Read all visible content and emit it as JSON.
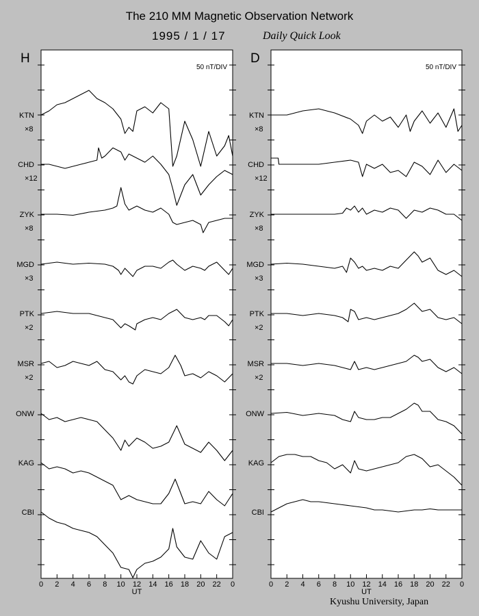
{
  "header": {
    "title": "The 210 MM Magnetic Observation Network",
    "date": "1995 /  1 / 17",
    "subtitle": "Daily Quick Look"
  },
  "footer": "Kyushu University, Japan",
  "chart_data": [
    {
      "type": "line",
      "panel": "H",
      "scale": "50 nT/DIV",
      "xlabel": "UT",
      "x_ticks": [
        "0",
        "2",
        "4",
        "6",
        "8",
        "10",
        "12",
        "14",
        "16",
        "18",
        "20",
        "22",
        "0"
      ],
      "xlim": [
        0,
        24
      ],
      "stations": [
        {
          "name": "KTN",
          "multiplier": "×8"
        },
        {
          "name": "CHD",
          "multiplier": "×12"
        },
        {
          "name": "ZYK",
          "multiplier": "×8"
        },
        {
          "name": "MGD",
          "multiplier": "×3"
        },
        {
          "name": "PTK",
          "multiplier": "×2"
        },
        {
          "name": "MSR",
          "multiplier": "×2"
        },
        {
          "name": "ONW",
          "multiplier": ""
        },
        {
          "name": "KAG",
          "multiplier": ""
        },
        {
          "name": "CBI",
          "multiplier": ""
        }
      ],
      "series": [
        {
          "name": "KTN",
          "x": [
            0,
            1,
            2,
            3,
            4,
            5,
            5.5,
            6,
            7,
            8,
            9,
            10,
            10.5,
            11,
            11.5,
            12,
            13,
            14,
            15,
            16,
            16.5,
            17,
            18,
            19,
            20,
            21,
            22,
            23,
            23.5,
            24
          ],
          "y": [
            0,
            0.2,
            0.5,
            0.6,
            0.8,
            1.0,
            1.1,
            1.2,
            0.8,
            0.6,
            0.3,
            -0.2,
            -0.9,
            -0.6,
            -0.8,
            0.2,
            0.4,
            0.1,
            0.6,
            0.3,
            -2.5,
            -2.0,
            -0.3,
            -1.2,
            -2.5,
            -0.8,
            -2.0,
            -1.5,
            -1.0,
            -2.0
          ]
        },
        {
          "name": "CHD",
          "x": [
            0,
            1,
            2,
            3,
            4,
            5,
            6,
            7,
            7.2,
            7.6,
            8,
            9,
            10,
            10.5,
            11,
            12,
            13,
            14,
            15,
            16,
            16.5,
            17,
            18,
            19,
            20,
            21,
            22,
            23,
            24
          ],
          "y": [
            0,
            0,
            -0.1,
            -0.2,
            -0.1,
            0,
            0.1,
            0.2,
            0.8,
            0.3,
            0.4,
            0.8,
            0.6,
            0.2,
            0.5,
            0.3,
            0.1,
            0.4,
            0,
            -0.5,
            -1.2,
            -2.0,
            -1.0,
            -0.5,
            -1.5,
            -1.0,
            -0.6,
            -0.3,
            -0.5
          ]
        },
        {
          "name": "ZYK",
          "x": [
            0,
            2,
            4,
            6,
            8,
            9,
            9.5,
            10,
            10.5,
            11,
            12,
            13,
            14,
            15,
            16,
            16.5,
            17,
            18,
            19,
            20,
            20.3,
            21,
            22,
            23,
            24
          ],
          "y": [
            0,
            0,
            -0.05,
            0.1,
            0.2,
            0.3,
            0.4,
            1.3,
            0.5,
            0.2,
            0.4,
            0.2,
            0.1,
            0.3,
            0,
            -0.4,
            -0.5,
            -0.4,
            -0.3,
            -0.5,
            -0.9,
            -0.4,
            -0.3,
            -0.2,
            -0.2
          ]
        },
        {
          "name": "MGD",
          "x": [
            0,
            2,
            4,
            6,
            8,
            9,
            9.7,
            10,
            10.5,
            11,
            11.5,
            12,
            13,
            14,
            15,
            16,
            16.5,
            17,
            18,
            19,
            20,
            20.5,
            21,
            22,
            23,
            23.5,
            24
          ],
          "y": [
            0,
            0.1,
            0,
            0.05,
            0,
            -0.1,
            -0.3,
            -0.5,
            -0.2,
            -0.4,
            -0.6,
            -0.3,
            -0.1,
            -0.1,
            -0.2,
            0.1,
            0.2,
            0,
            -0.3,
            -0.1,
            -0.2,
            -0.3,
            -0.1,
            0.1,
            -0.3,
            -0.5,
            -0.2
          ]
        },
        {
          "name": "PTK",
          "x": [
            0,
            2,
            4,
            6,
            7,
            8,
            9,
            10,
            10.5,
            11,
            11.8,
            12,
            13,
            14,
            15,
            16,
            17,
            18,
            19,
            20,
            20.5,
            21,
            22,
            23,
            23.5,
            24
          ],
          "y": [
            0,
            0.1,
            0,
            0,
            -0.1,
            -0.2,
            -0.3,
            -0.7,
            -0.5,
            -0.6,
            -0.8,
            -0.5,
            -0.3,
            -0.2,
            -0.3,
            0,
            0.2,
            -0.2,
            -0.3,
            -0.2,
            -0.3,
            -0.1,
            -0.1,
            -0.4,
            -0.6,
            -0.3
          ]
        },
        {
          "name": "MSR",
          "x": [
            0,
            1,
            2,
            3,
            4,
            5,
            6,
            7,
            8,
            9,
            10,
            10.5,
            11,
            11.5,
            12,
            13,
            14,
            15,
            16,
            16.8,
            17.5,
            18,
            19,
            20,
            21,
            22,
            23,
            24
          ],
          "y": [
            0,
            0.1,
            -0.2,
            -0.1,
            0.1,
            0,
            -0.1,
            0.1,
            -0.3,
            -0.4,
            -0.8,
            -0.6,
            -0.9,
            -1.0,
            -0.6,
            -0.3,
            -0.4,
            -0.5,
            -0.2,
            0.4,
            -0.1,
            -0.6,
            -0.5,
            -0.7,
            -0.4,
            -0.6,
            -0.9,
            -0.5
          ]
        },
        {
          "name": "ONW",
          "x": [
            0,
            1,
            2,
            3,
            4,
            5,
            6,
            7,
            8,
            9,
            10,
            10.5,
            11,
            12,
            13,
            14,
            15,
            16,
            17,
            18,
            19,
            20,
            21,
            22,
            23,
            24
          ],
          "y": [
            0,
            -0.3,
            -0.2,
            -0.4,
            -0.3,
            -0.2,
            -0.3,
            -0.4,
            -0.8,
            -1.2,
            -1.8,
            -1.3,
            -1.6,
            -1.2,
            -1.4,
            -1.7,
            -1.6,
            -1.4,
            -0.6,
            -1.5,
            -1.7,
            -1.9,
            -1.4,
            -1.8,
            -2.3,
            -1.8
          ]
        },
        {
          "name": "KAG",
          "x": [
            0,
            1,
            2,
            3,
            4,
            5,
            6,
            7,
            8,
            9,
            10,
            11,
            12,
            13,
            14,
            15,
            16,
            16.8,
            17.5,
            18,
            19,
            20,
            21,
            22,
            23,
            24
          ],
          "y": [
            0,
            -0.3,
            -0.2,
            -0.3,
            -0.5,
            -0.4,
            -0.5,
            -0.7,
            -0.9,
            -1.1,
            -1.8,
            -1.6,
            -1.8,
            -1.9,
            -2.0,
            -2.0,
            -1.5,
            -0.8,
            -1.5,
            -2.0,
            -1.9,
            -2.0,
            -1.4,
            -1.8,
            -2.1,
            -1.5
          ]
        },
        {
          "name": "CBI",
          "x": [
            0,
            1,
            2,
            3,
            4,
            5,
            6,
            7,
            8,
            9,
            10,
            11,
            11.5,
            12,
            13,
            14,
            15,
            16,
            16.5,
            17,
            18,
            19,
            20,
            21,
            22,
            23,
            24
          ],
          "y": [
            0,
            -0.3,
            -0.5,
            -0.6,
            -0.8,
            -0.9,
            -1.0,
            -1.2,
            -1.6,
            -2.0,
            -2.7,
            -2.8,
            -3.2,
            -2.8,
            -2.5,
            -2.4,
            -2.2,
            -1.8,
            -0.8,
            -1.7,
            -2.2,
            -2.3,
            -1.4,
            -2.0,
            -2.3,
            -1.2,
            -1.0
          ]
        }
      ]
    },
    {
      "type": "line",
      "panel": "D",
      "scale": "50 nT/DIV",
      "xlabel": "UT",
      "x_ticks": [
        "0",
        "2",
        "4",
        "6",
        "8",
        "10",
        "12",
        "14",
        "16",
        "18",
        "20",
        "22",
        "0"
      ],
      "xlim": [
        0,
        24
      ],
      "stations": [
        {
          "name": "KTN",
          "multiplier": "×8"
        },
        {
          "name": "CHD",
          "multiplier": "×12"
        },
        {
          "name": "ZYK",
          "multiplier": "×8"
        },
        {
          "name": "MGD",
          "multiplier": "×3"
        },
        {
          "name": "PTK",
          "multiplier": "×2"
        },
        {
          "name": "MSR",
          "multiplier": "×2"
        },
        {
          "name": "ONW",
          "multiplier": ""
        },
        {
          "name": "KAG",
          "multiplier": ""
        },
        {
          "name": "CBI",
          "multiplier": ""
        }
      ],
      "series": [
        {
          "name": "KTN",
          "x": [
            0,
            2,
            4,
            6,
            8,
            10,
            11,
            11.5,
            12,
            13,
            14,
            15,
            16,
            17,
            17.5,
            18,
            19,
            20,
            21,
            22,
            23,
            23.5,
            24
          ],
          "y": [
            0,
            0,
            0.2,
            0.3,
            0.1,
            -0.2,
            -0.5,
            -0.9,
            -0.3,
            0,
            -0.3,
            -0.1,
            -0.6,
            0,
            -0.8,
            -0.3,
            0.2,
            -0.4,
            0.1,
            -0.6,
            0.3,
            -0.8,
            -0.5
          ]
        },
        {
          "name": "CHD",
          "x": [
            0,
            0.9,
            1,
            2,
            4,
            6,
            8,
            10,
            11,
            11.5,
            12,
            13,
            14,
            15,
            16,
            17,
            18,
            19,
            20,
            21,
            22,
            23,
            24
          ],
          "y": [
            0.3,
            0.3,
            0,
            0,
            0,
            0,
            0.1,
            0.2,
            0.1,
            -0.6,
            0,
            -0.2,
            0,
            -0.4,
            -0.3,
            -0.6,
            0.1,
            -0.1,
            -0.5,
            0.2,
            -0.4,
            0,
            -0.3
          ]
        },
        {
          "name": "ZYK",
          "x": [
            0,
            2,
            4,
            6,
            8,
            9,
            9.5,
            10,
            10.5,
            11,
            11.5,
            12,
            13,
            14,
            15,
            16,
            17,
            18,
            19,
            20,
            21,
            22,
            23,
            24
          ],
          "y": [
            0,
            0,
            0,
            0,
            0,
            0.05,
            0.3,
            0.2,
            0.4,
            0.1,
            0.3,
            0,
            0.2,
            0.1,
            0.3,
            0.2,
            -0.2,
            0.2,
            0.1,
            0.3,
            0.2,
            0,
            0,
            -0.3
          ]
        },
        {
          "name": "MGD",
          "x": [
            0,
            2,
            4,
            6,
            8,
            9,
            9.5,
            10,
            10.5,
            11,
            11.5,
            12,
            13,
            14,
            15,
            16,
            17,
            18,
            18.5,
            19,
            20,
            21,
            22,
            23,
            24
          ],
          "y": [
            0,
            0.05,
            0,
            -0.1,
            -0.2,
            -0.1,
            -0.4,
            0.3,
            0.1,
            -0.2,
            -0.1,
            -0.3,
            -0.2,
            -0.3,
            -0.1,
            -0.2,
            0.2,
            0.6,
            0.4,
            0.1,
            0.3,
            -0.3,
            -0.5,
            -0.3,
            -0.6
          ]
        },
        {
          "name": "PTK",
          "x": [
            0,
            2,
            4,
            6,
            8,
            9,
            9.7,
            10,
            10.5,
            11,
            12,
            13,
            14,
            15,
            16,
            17,
            18,
            18.5,
            19,
            20,
            21,
            22,
            23,
            24
          ],
          "y": [
            0,
            0,
            -0.1,
            0,
            -0.1,
            -0.2,
            -0.4,
            0.2,
            0.1,
            -0.3,
            -0.2,
            -0.3,
            -0.2,
            -0.1,
            0,
            0.2,
            0.5,
            0.3,
            0.1,
            0.2,
            -0.2,
            -0.3,
            -0.2,
            -0.5
          ]
        },
        {
          "name": "MSR",
          "x": [
            0,
            2,
            4,
            6,
            8,
            9,
            10,
            10.5,
            11,
            12,
            13,
            14,
            15,
            16,
            17,
            18,
            18.5,
            19,
            20,
            21,
            22,
            23,
            24
          ],
          "y": [
            0,
            0,
            -0.1,
            0,
            -0.1,
            -0.2,
            -0.3,
            0.1,
            -0.3,
            -0.2,
            -0.3,
            -0.2,
            -0.1,
            0,
            0.1,
            0.4,
            0.3,
            0.1,
            0.2,
            -0.2,
            -0.4,
            -0.2,
            -0.5
          ]
        },
        {
          "name": "ONW",
          "x": [
            0,
            2,
            4,
            6,
            8,
            9,
            10,
            10.5,
            11,
            12,
            13,
            14,
            15,
            16,
            17,
            18,
            18.5,
            19,
            20,
            21,
            22,
            23,
            24
          ],
          "y": [
            0,
            0.05,
            -0.1,
            0,
            -0.1,
            -0.3,
            -0.4,
            0.1,
            -0.2,
            -0.3,
            -0.3,
            -0.2,
            -0.2,
            0,
            0.2,
            0.5,
            0.4,
            0.1,
            0.1,
            -0.3,
            -0.4,
            -0.6,
            -1.0
          ]
        },
        {
          "name": "KAG",
          "x": [
            0,
            1,
            2,
            3,
            4,
            5,
            6,
            7,
            8,
            9,
            10,
            10.5,
            11,
            12,
            13,
            14,
            15,
            16,
            17,
            18,
            19,
            20,
            21,
            22,
            23,
            24
          ],
          "y": [
            0,
            0.3,
            0.4,
            0.4,
            0.3,
            0.3,
            0.1,
            0,
            -0.3,
            -0.1,
            -0.5,
            0.1,
            -0.3,
            -0.4,
            -0.3,
            -0.2,
            -0.1,
            0,
            0.3,
            0.4,
            0.2,
            -0.2,
            -0.1,
            -0.4,
            -0.7,
            -1.1
          ]
        },
        {
          "name": "CBI",
          "x": [
            0,
            1,
            2,
            3,
            4,
            5,
            6,
            7,
            8,
            9,
            10,
            11,
            12,
            13,
            14,
            15,
            16,
            17,
            18,
            19,
            20,
            21,
            22,
            23,
            24
          ],
          "y": [
            0,
            0.2,
            0.4,
            0.5,
            0.6,
            0.5,
            0.5,
            0.45,
            0.4,
            0.35,
            0.3,
            0.25,
            0.2,
            0.1,
            0.1,
            0.05,
            0,
            0.05,
            0.1,
            0.1,
            0.15,
            0.1,
            0.1,
            0.1,
            0.1
          ]
        }
      ]
    }
  ]
}
